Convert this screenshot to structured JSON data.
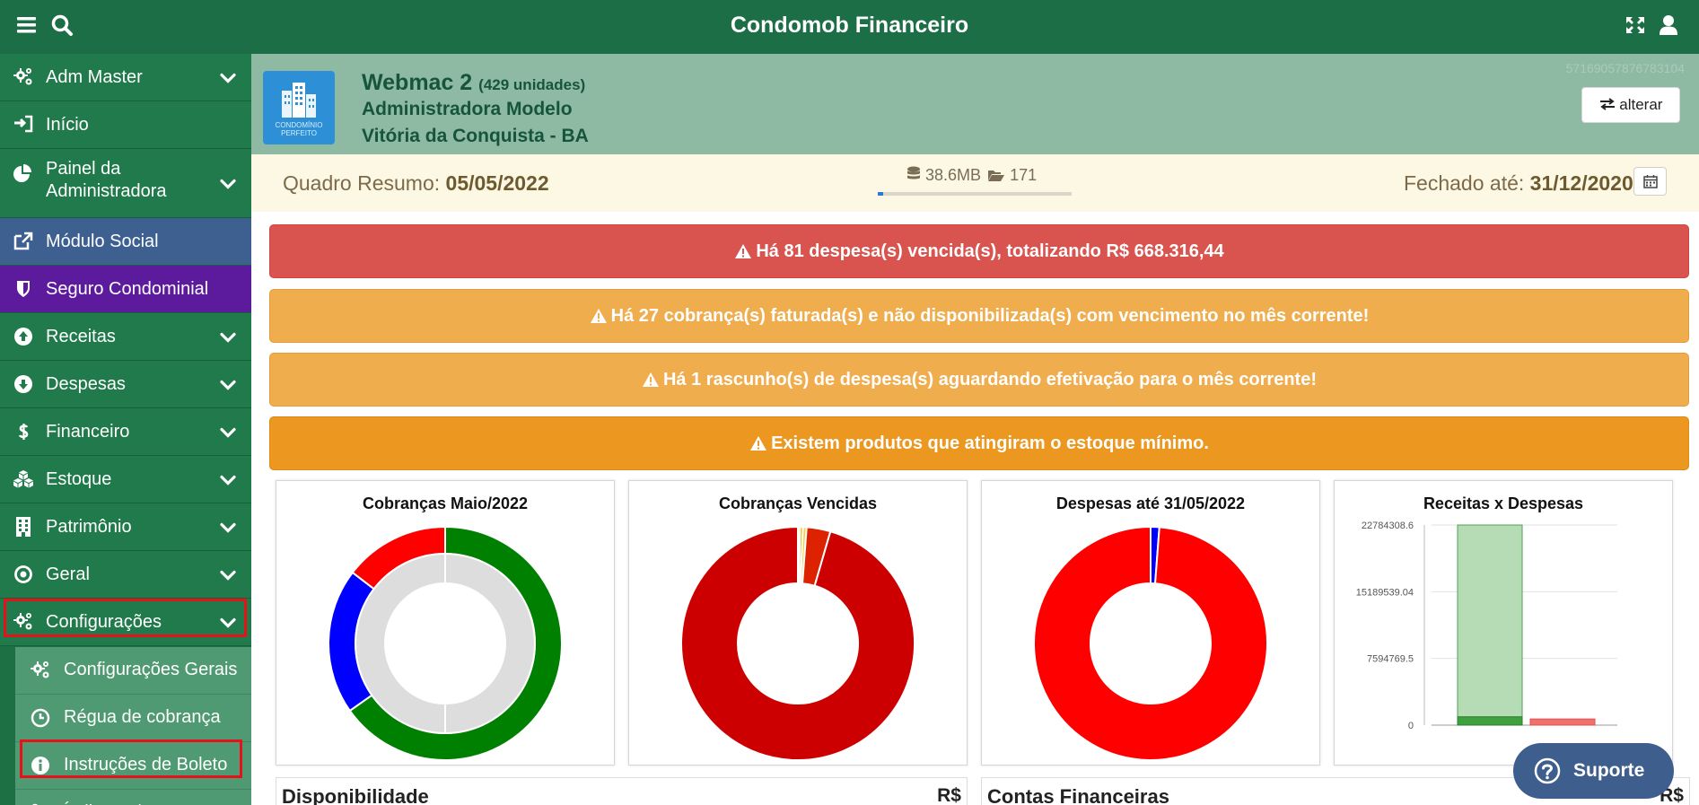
{
  "app": {
    "title": "Condomob Financeiro"
  },
  "topbar": {
    "icons": [
      "bars-icon",
      "search-icon",
      "expand-icon",
      "user-icon"
    ]
  },
  "sidebar": {
    "items": [
      {
        "label": "Adm Master",
        "icon": "cogs-icon",
        "has_children": true,
        "color": "#217a4b"
      },
      {
        "label": "Início",
        "icon": "sign-in-icon",
        "has_children": false,
        "color": "#217a4b"
      },
      {
        "label": "Painel da Administradora",
        "icon": "pie-chart-icon",
        "has_children": true,
        "color": "#217a4b"
      },
      {
        "label": "Módulo Social",
        "icon": "external-link-icon",
        "has_children": false,
        "color": "#3d6090"
      },
      {
        "label": "Seguro Condominial",
        "icon": "shield-icon",
        "has_children": false,
        "color": "#5c1a9c"
      },
      {
        "label": "Receitas",
        "icon": "arrow-circle-up-icon",
        "has_children": true,
        "color": "#217a4b"
      },
      {
        "label": "Despesas",
        "icon": "arrow-circle-down-icon",
        "has_children": true,
        "color": "#217a4b"
      },
      {
        "label": "Financeiro",
        "icon": "dollar-icon",
        "has_children": true,
        "color": "#217a4b"
      },
      {
        "label": "Estoque",
        "icon": "cubes-icon",
        "has_children": true,
        "color": "#217a4b"
      },
      {
        "label": "Patrimônio",
        "icon": "building-icon",
        "has_children": true,
        "color": "#217a4b"
      },
      {
        "label": "Geral",
        "icon": "dot-circle-icon",
        "has_children": true,
        "color": "#217a4b"
      },
      {
        "label": "Configurações",
        "icon": "cogs-icon",
        "has_children": true,
        "color": "#217a4b",
        "expanded": true
      }
    ],
    "subitems": [
      {
        "label": "Configurações Gerais",
        "icon": "cogs-icon"
      },
      {
        "label": "Régua de cobrança",
        "icon": "clock-icon"
      },
      {
        "label": "Instruções de Boleto",
        "icon": "info-circle-icon"
      },
      {
        "label": "Índices e/",
        "icon": "percent-icon"
      }
    ]
  },
  "header": {
    "logo_text_1": "CONDOMÍNIO",
    "logo_text_2": "PERFEITO",
    "name": "Webmac 2",
    "units": "(429 unidades)",
    "admin": "Administradora Modelo",
    "city": "Vitória da Conquista - BA",
    "code": "57169057876783104",
    "change_label": "alterar"
  },
  "summary": {
    "left_label": "Quadro Resumo:",
    "left_date": "05/05/2022",
    "storage": "38.6MB",
    "files": "171",
    "storage_fraction": 0.03,
    "right_label": "Fechado até:",
    "right_date": "31/12/2020"
  },
  "alerts": [
    {
      "text": "Há 81 despesa(s) vencida(s), totalizando R$ 668.316,44",
      "color": "#d9534f"
    },
    {
      "text": "Há 27 cobrança(s) faturada(s) e não disponibilizada(s) com vencimento no mês corrente!",
      "color": "#f0ad4e"
    },
    {
      "text": "Há 1 rascunho(s) de despesa(s) aguardando efetivação para o mês corrente!",
      "color": "#f0ad4e"
    },
    {
      "text": "Existem produtos que atingiram o estoque mínimo.",
      "color": "#ec971f"
    }
  ],
  "chart_data": [
    {
      "type": "pie",
      "title": "Cobranças Maio/2022",
      "outer": [
        {
          "value": 0.6,
          "color": "#008000"
        },
        {
          "value": 0.1857,
          "color": "#0000ff"
        },
        {
          "value": 0.1343,
          "color": "#ff0000"
        }
      ],
      "inner": [
        {
          "value": 1.0,
          "color": "#dddddd"
        }
      ]
    },
    {
      "type": "pie",
      "title": "Cobranças Vencidas",
      "outer": [
        {
          "value": 0.003,
          "color": "#f5e400"
        },
        {
          "value": 0.004,
          "color": "#e8b000"
        },
        {
          "value": 0.005,
          "color": "#f3d34a"
        },
        {
          "value": 0.033,
          "color": "#dd2200"
        },
        {
          "value": 0.955,
          "color": "#cc0000"
        }
      ]
    },
    {
      "type": "pie",
      "title": "Despesas até 31/05/2022",
      "outer": [
        {
          "value": 0.012,
          "color": "#0000ff"
        },
        {
          "value": 0.988,
          "color": "#ff0000"
        }
      ]
    },
    {
      "type": "bar",
      "title": "Receitas x Despesas",
      "yticks": [
        "22784308.6",
        "15189539.04",
        "7594769.5",
        "0"
      ],
      "ylim": [
        0,
        22784308.6
      ],
      "bars": [
        {
          "value": 22784308.6,
          "color": "#b5dcb5",
          "stroke": "#55a055"
        },
        {
          "value": 950000,
          "color": "#3ea03e",
          "stroke": "#2a802a"
        },
        {
          "value": 700000,
          "color": "#f07070",
          "stroke": "#e05050"
        }
      ]
    }
  ],
  "bottom": {
    "left_title": "Disponibilidade",
    "left_currency": "R$",
    "right_title": "Contas Financeiras",
    "right_currency": "R$"
  },
  "support": {
    "label": "Suporte"
  }
}
